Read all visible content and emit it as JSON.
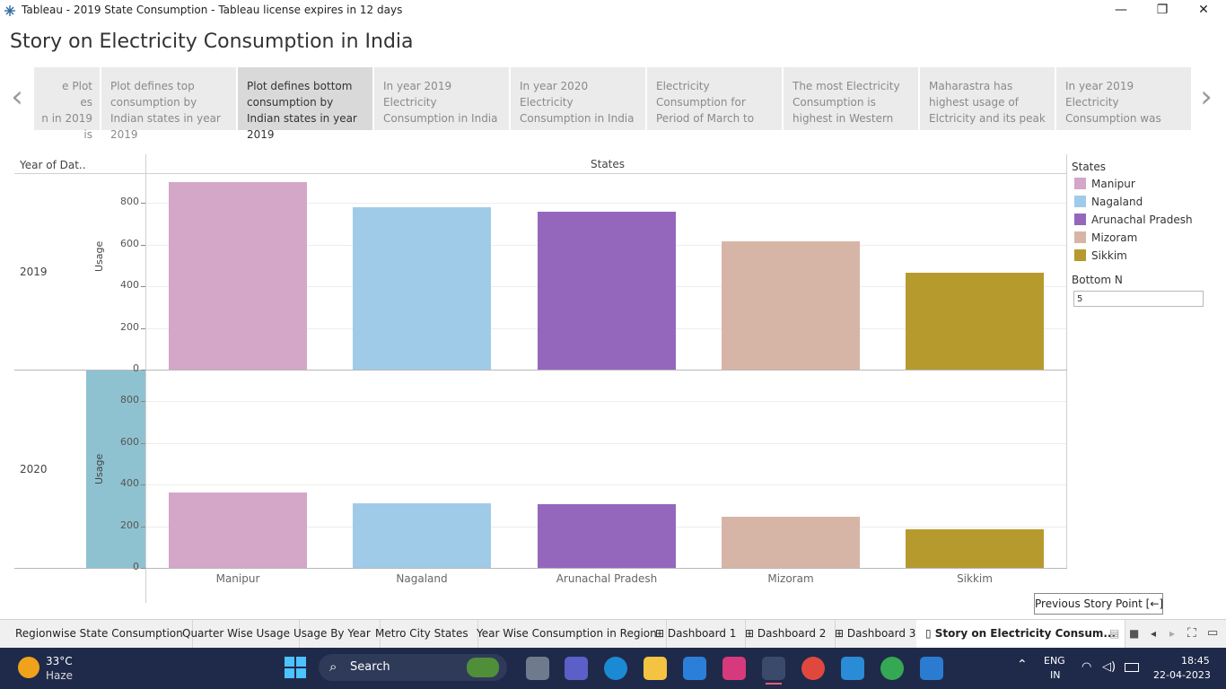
{
  "window": {
    "title": "Tableau - 2019 State Consumption - Tableau license expires in 12 days",
    "minimize_label": "—",
    "restore_label": "❐",
    "close_label": "✕"
  },
  "story_title": "Story on Electricity Consumption in India",
  "story_points": [
    {
      "text": "e Plot\nes\nn in 2019 is",
      "active": false
    },
    {
      "text": "Plot defines top consumption by Indian states in year 2019",
      "active": false
    },
    {
      "text": "Plot defines bottom consumption by Indian states in year  2019",
      "active": true
    },
    {
      "text": "In year 2019 Electricity Consumption in India",
      "active": false
    },
    {
      "text": "In year 2020 Electricity Consumption in India",
      "active": false
    },
    {
      "text": "Electricity Consumption for Period of March to",
      "active": false
    },
    {
      "text": "The most Electricity Consumption is highest in Western",
      "active": false
    },
    {
      "text": "Maharastra has highest usage of Elctricity and its peak",
      "active": false
    },
    {
      "text": "In year 2019 Electricity Consumption was",
      "active": false
    }
  ],
  "chart": {
    "column_header": "States",
    "row_header": "Year of Dat..",
    "y_axis_label": "Usage",
    "rows": [
      "2019",
      "2020"
    ],
    "y_ticks": [
      0,
      200,
      400,
      600,
      800
    ],
    "tick_labels": [
      "0",
      "200",
      "400",
      "600",
      "800"
    ]
  },
  "chart_data": {
    "type": "bar",
    "categories": [
      "Manipur",
      "Nagaland",
      "Arunachal Pradesh",
      "Mizoram",
      "Sikkim"
    ],
    "series": [
      {
        "name": "2019",
        "values": [
          900,
          780,
          760,
          615,
          465
        ]
      },
      {
        "name": "2020",
        "values": [
          360,
          310,
          305,
          245,
          185
        ]
      }
    ],
    "colors": [
      "#d4a6c8",
      "#a0cbe8",
      "#9467bd",
      "#d7b5a6",
      "#b79a2e"
    ],
    "ylabel": "Usage",
    "xlabel": "States",
    "ylim": [
      0,
      900
    ],
    "legend_placement": "right"
  },
  "legend": {
    "title": "States",
    "items": [
      {
        "label": "Manipur",
        "color": "#d4a6c8"
      },
      {
        "label": "Nagaland",
        "color": "#a0cbe8"
      },
      {
        "label": "Arunachal Pradesh",
        "color": "#9467bd"
      },
      {
        "label": "Mizoram",
        "color": "#d7b5a6"
      },
      {
        "label": "Sikkim",
        "color": "#b79a2e"
      }
    ]
  },
  "bottom_n": {
    "label": "Bottom N",
    "value": "5"
  },
  "tooltip": "Previous Story Point [←]",
  "sheet_tabs": [
    {
      "label": "Regionwise State Consumption",
      "icon": ""
    },
    {
      "label": "Quarter Wise Usage",
      "icon": ""
    },
    {
      "label": "Usage By Year",
      "icon": ""
    },
    {
      "label": "Metro City States",
      "icon": ""
    },
    {
      "label": "Year Wise Consumption in Region",
      "icon": ""
    },
    {
      "label": "Dashboard 1",
      "icon": "dashboard-icon"
    },
    {
      "label": "Dashboard 2",
      "icon": "dashboard-icon"
    },
    {
      "label": "Dashboard 3",
      "icon": "dashboard-icon"
    },
    {
      "label": "Story on Electricity Consum...",
      "icon": "story-icon"
    }
  ],
  "taskbar": {
    "weather_temp": "33°C",
    "weather_desc": "Haze",
    "search_label": "Search",
    "lang_top": "ENG",
    "lang_bottom": "IN",
    "time": "18:45",
    "date": "22-04-2023"
  }
}
